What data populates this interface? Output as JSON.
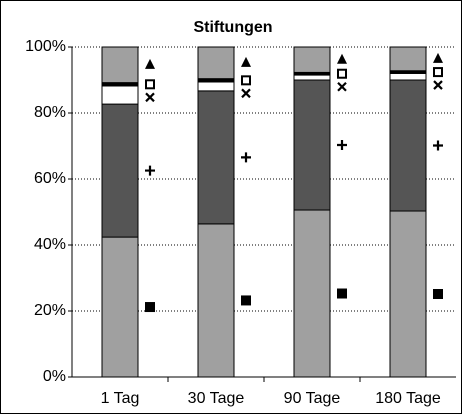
{
  "chart_data": {
    "type": "stacked_bar",
    "title": "Stiftungen",
    "categories": [
      "1 Tag",
      "30 Tage",
      "90 Tage",
      "180 Tage"
    ],
    "series": [
      {
        "color": "#a0a0a0",
        "marker": "square",
        "values": [
          42.4,
          46.4,
          50.6,
          50.3
        ]
      },
      {
        "color": "#555555",
        "marker": "plus",
        "values": [
          40.3,
          40.3,
          39.4,
          39.7
        ]
      },
      {
        "color": "#ffffff",
        "marker": "cross",
        "values": [
          5.5,
          2.7,
          1.5,
          2.0
        ]
      },
      {
        "color": "#000000",
        "marker": "hollow-square",
        "values": [
          1.0,
          1.0,
          0.8,
          0.8
        ]
      },
      {
        "color": "#a0a0a0",
        "marker": "triangle",
        "values": [
          10.8,
          9.6,
          7.7,
          7.2
        ]
      }
    ],
    "ylim": [
      0,
      100
    ],
    "yticks": [
      {
        "value": 0,
        "label": "0%"
      },
      {
        "value": 20,
        "label": "20%"
      },
      {
        "value": 40,
        "label": "40%"
      },
      {
        "value": 60,
        "label": "60%"
      },
      {
        "value": 80,
        "label": "80%"
      },
      {
        "value": 100,
        "label": "100%"
      }
    ],
    "grid": true
  }
}
